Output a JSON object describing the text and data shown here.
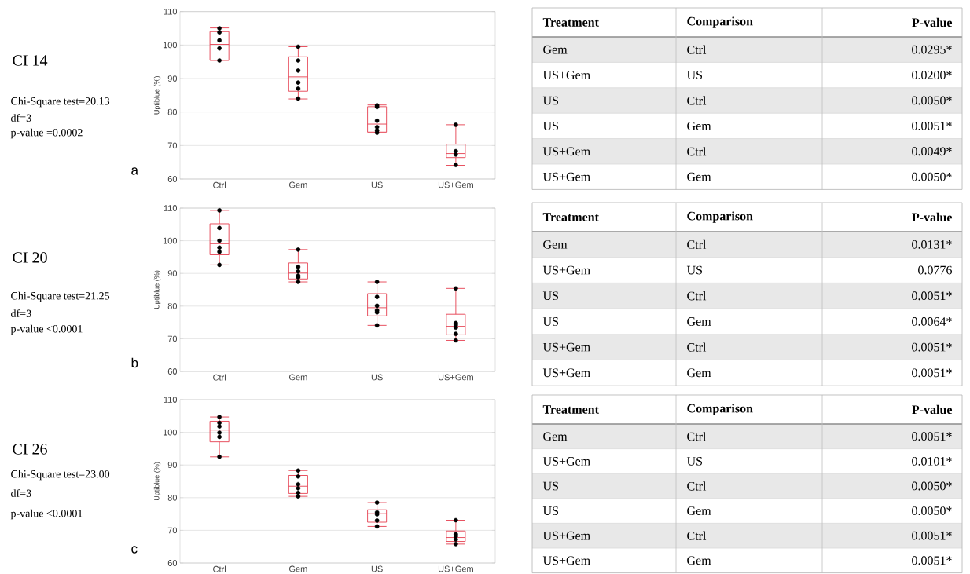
{
  "chart_data": [
    {
      "type": "box",
      "ylabel": "Uptiblue (%)",
      "categories": [
        "Ctrl",
        "Gem",
        "US",
        "US+Gem"
      ],
      "ylim": [
        60,
        110
      ],
      "yticks": [
        60,
        70,
        80,
        90,
        100,
        110
      ],
      "grid": "y",
      "annotations": [
        "CI 14",
        "Chi-Square test=20.13",
        "df=3",
        "p-value =0.0002",
        "a"
      ],
      "series": [
        {
          "type": "box",
          "color": "#e53e4f",
          "boxes": [
            {
              "low": 95.4,
              "q1": 95.5,
              "median": 100.2,
              "q3": 104.0,
              "high": 105.1
            },
            {
              "low": 83.9,
              "q1": 86.2,
              "median": 90.5,
              "q3": 96.5,
              "high": 99.5
            },
            {
              "low": 73.8,
              "q1": 74.0,
              "median": 76.4,
              "q3": 81.6,
              "high": 82.1
            },
            {
              "low": 64.1,
              "q1": 66.4,
              "median": 67.6,
              "q3": 70.4,
              "high": 76.2
            }
          ]
        },
        {
          "type": "scatter",
          "color": "#000000",
          "marker": "circle",
          "x": [
            "Ctrl",
            "Ctrl",
            "Ctrl",
            "Ctrl",
            "Ctrl",
            "Gem",
            "Gem",
            "Gem",
            "Gem",
            "Gem",
            "Gem",
            "US",
            "US",
            "US",
            "US",
            "US",
            "US",
            "US+Gem",
            "US+Gem",
            "US+Gem",
            "US+Gem"
          ],
          "values": [
            105.0,
            103.8,
            101.4,
            99.0,
            95.4,
            99.5,
            95.4,
            92.4,
            88.8,
            87.0,
            84.0,
            82.0,
            81.5,
            77.4,
            75.5,
            74.5,
            73.8,
            76.2,
            68.3,
            67.3,
            64.2
          ]
        }
      ]
    },
    {
      "type": "other",
      "categories": [
        "Treatment",
        "Comparison",
        "P-value"
      ],
      "annotations": [
        "Gem",
        "Ctrl",
        "0.0295*",
        "US+Gem",
        "US",
        "0.0200*",
        "US",
        "Ctrl",
        "0.0050*",
        "US",
        "Gem",
        "0.0051*",
        "US+Gem",
        "Ctrl",
        "0.0049*",
        "US+Gem",
        "Gem",
        "0.0050*"
      ]
    },
    {
      "type": "box",
      "ylabel": "Uptiblue (%)",
      "categories": [
        "Ctrl",
        "Gem",
        "US",
        "US+Gem"
      ],
      "ylim": [
        60,
        110
      ],
      "yticks": [
        60,
        70,
        80,
        90,
        100,
        110
      ],
      "grid": "y",
      "annotations": [
        "CI 20",
        "Chi-Square test=21.25",
        "df=3",
        "p-value <0.0001",
        "b"
      ],
      "series": [
        {
          "type": "box",
          "color": "#e53e4f",
          "boxes": [
            {
              "low": 92.6,
              "q1": 95.7,
              "median": 99.1,
              "q3": 105.2,
              "high": 109.3
            },
            {
              "low": 87.4,
              "q1": 88.3,
              "median": 90.1,
              "q3": 93.2,
              "high": 97.3
            },
            {
              "low": 74.1,
              "q1": 77.0,
              "median": 79.5,
              "q3": 83.8,
              "high": 87.4
            },
            {
              "low": 69.5,
              "q1": 71.2,
              "median": 73.8,
              "q3": 77.5,
              "high": 85.4
            }
          ]
        },
        {
          "type": "scatter",
          "color": "#000000",
          "marker": "circle",
          "x": [
            "Ctrl",
            "Ctrl",
            "Ctrl",
            "Ctrl",
            "Ctrl",
            "Ctrl",
            "Gem",
            "Gem",
            "Gem",
            "Gem",
            "Gem",
            "Gem",
            "US",
            "US",
            "US",
            "US",
            "US",
            "US",
            "US+Gem",
            "US+Gem",
            "US+Gem",
            "US+Gem",
            "US+Gem",
            "US+Gem"
          ],
          "values": [
            109.3,
            103.9,
            100.0,
            97.9,
            96.6,
            92.6,
            97.3,
            92.0,
            90.6,
            89.3,
            88.8,
            87.4,
            87.4,
            82.8,
            80.1,
            78.7,
            78.1,
            74.1,
            85.4,
            74.8,
            74.2,
            73.4,
            71.5,
            69.5
          ]
        }
      ]
    },
    {
      "type": "other",
      "categories": [
        "Treatment",
        "Comparison",
        "P-value"
      ],
      "annotations": [
        "Gem",
        "Ctrl",
        "0.0131*",
        "US+Gem",
        "US",
        "0.0776",
        "US",
        "Ctrl",
        "0.0051*",
        "US",
        "Gem",
        "0.0064*",
        "US+Gem",
        "Ctrl",
        "0.0051*",
        "US+Gem",
        "Gem",
        "0.0051*"
      ]
    },
    {
      "type": "box",
      "ylabel": "Uptiblue (%)",
      "categories": [
        "Ctrl",
        "Gem",
        "US",
        "US+Gem"
      ],
      "ylim": [
        60,
        110
      ],
      "yticks": [
        60,
        70,
        80,
        90,
        100,
        110
      ],
      "grid": "y",
      "annotations": [
        "CI 26",
        "Chi-Square test=23.00",
        "df=3",
        "p-value <0.0001",
        "c"
      ],
      "series": [
        {
          "type": "box",
          "color": "#e53e4f",
          "boxes": [
            {
              "low": 92.5,
              "q1": 97.1,
              "median": 100.7,
              "q3": 103.4,
              "high": 104.7
            },
            {
              "low": 80.4,
              "q1": 81.3,
              "median": 83.5,
              "q3": 86.8,
              "high": 88.3
            },
            {
              "low": 71.2,
              "q1": 72.5,
              "median": 75.1,
              "q3": 76.3,
              "high": 78.5
            },
            {
              "low": 65.8,
              "q1": 66.6,
              "median": 67.8,
              "q3": 69.8,
              "high": 73.1
            }
          ]
        },
        {
          "type": "scatter",
          "color": "#000000",
          "marker": "circle",
          "x": [
            "Ctrl",
            "Ctrl",
            "Ctrl",
            "Ctrl",
            "Ctrl",
            "Ctrl",
            "Gem",
            "Gem",
            "Gem",
            "Gem",
            "Gem",
            "Gem",
            "US",
            "US",
            "US",
            "US",
            "US",
            "US+Gem",
            "US+Gem",
            "US+Gem",
            "US+Gem",
            "US+Gem"
          ],
          "values": [
            104.7,
            102.9,
            101.8,
            99.9,
            98.6,
            92.5,
            88.3,
            86.5,
            84.1,
            82.9,
            81.5,
            80.4,
            78.5,
            75.5,
            74.9,
            73.0,
            71.2,
            73.1,
            68.8,
            68.2,
            67.2,
            65.8
          ]
        }
      ]
    },
    {
      "type": "other",
      "categories": [
        "Treatment",
        "Comparison",
        "P-value"
      ],
      "annotations": [
        "Gem",
        "Ctrl",
        "0.0051*",
        "US+Gem",
        "US",
        "0.0101*",
        "US",
        "Ctrl",
        "0.0050*",
        "US",
        "Gem",
        "0.0050*",
        "US+Gem",
        "Ctrl",
        "0.0051*",
        "US+Gem",
        "Gem",
        "0.0051*"
      ]
    }
  ]
}
